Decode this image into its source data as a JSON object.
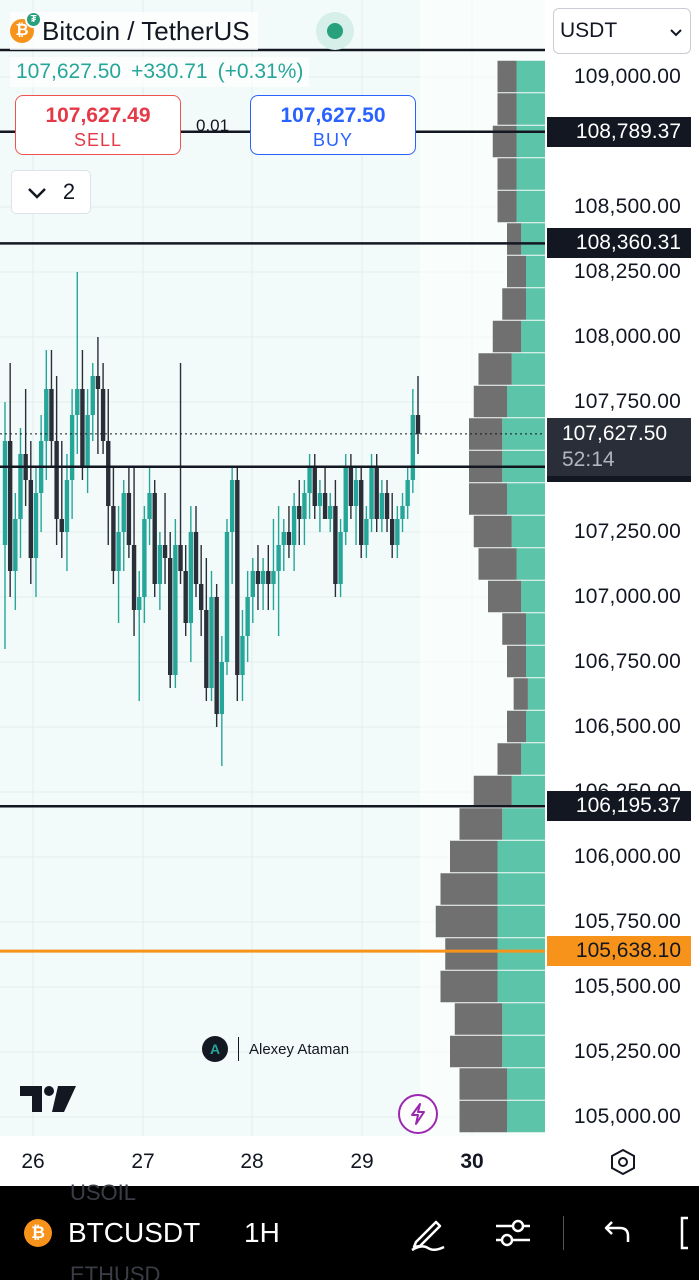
{
  "header": {
    "symbol_name": "Bitcoin / TetherUS",
    "btc_icon_glyph": "₿",
    "tether_glyph": "₮",
    "last_price": "107,627.50",
    "change": "+330.71",
    "change_pct": "(+0.31%)",
    "up_color": "#26a69a"
  },
  "trade": {
    "sell_price": "107,627.49",
    "sell_label": "SELL",
    "buy_price": "107,627.50",
    "buy_label": "BUY",
    "spread": "0.01"
  },
  "collapse": {
    "count": "2"
  },
  "currency_select": {
    "value": "USDT"
  },
  "price_axis": {
    "labels": [
      "109,000.00",
      "108,500.00",
      "108,250.00",
      "108,000.00",
      "107,750.00",
      "107,250.00",
      "107,000.00",
      "106,750.00",
      "106,500.00",
      "106,250.00",
      "106,000.00",
      "105,750.00",
      "105,500.00",
      "105,250.00",
      "105,000.00"
    ],
    "current_price": "107,627.50",
    "countdown": "52:14"
  },
  "horizontal_lines": [
    {
      "price": "108,789.37",
      "color": "#131722"
    },
    {
      "price": "108,360.31",
      "color": "#131722"
    },
    {
      "price": "107,501.20",
      "color": "#131722"
    },
    {
      "price": "106,195.37",
      "color": "#131722"
    },
    {
      "price": "105,638.10",
      "color": "#f7931a"
    }
  ],
  "time_axis": {
    "labels": [
      "26",
      "27",
      "28",
      "29",
      "30"
    ]
  },
  "watermark": {
    "author": "Alexey Ataman",
    "logo_glyph": "A"
  },
  "toolbar": {
    "symbol": "BTCUSDT",
    "interval": "1H",
    "ghost_above": "USOIL",
    "ghost_below": "ETHUSD",
    "btc_glyph": "₿"
  },
  "icons": {
    "bolt": "⚡",
    "chevron": "⌄",
    "collapse_chevron": "∨"
  },
  "colors": {
    "bull": "#26a69a",
    "bear": "#2a2e39",
    "chart_bg": "#f2fbf9",
    "vp_up": "#5cc4a8",
    "vp_down": "#707070"
  },
  "chart_data": {
    "type": "candlestick",
    "interval": "1H",
    "x_ticks": [
      "26",
      "27",
      "28",
      "29",
      "30"
    ],
    "y_range": [
      104900,
      109200
    ],
    "y_ticks": [
      105000,
      105250,
      105500,
      105750,
      106000,
      106250,
      106500,
      106750,
      107000,
      107250,
      107500,
      107750,
      108000,
      108250,
      108500,
      109000
    ],
    "last": 107627.5,
    "volume_profile": [
      {
        "price": 109000,
        "up": 3,
        "down": 2
      },
      {
        "price": 108875,
        "up": 3,
        "down": 2
      },
      {
        "price": 108750,
        "up": 3,
        "down": 2.5
      },
      {
        "price": 108625,
        "up": 3,
        "down": 2
      },
      {
        "price": 108500,
        "up": 3,
        "down": 2
      },
      {
        "price": 108375,
        "up": 2.5,
        "down": 1.5
      },
      {
        "price": 108250,
        "up": 2,
        "down": 2
      },
      {
        "price": 108125,
        "up": 2,
        "down": 2.5
      },
      {
        "price": 108000,
        "up": 2.5,
        "down": 3
      },
      {
        "price": 107875,
        "up": 3.5,
        "down": 3.5
      },
      {
        "price": 107750,
        "up": 4,
        "down": 3.5
      },
      {
        "price": 107625,
        "up": 4.5,
        "down": 3.5
      },
      {
        "price": 107500,
        "up": 4.5,
        "down": 3.5
      },
      {
        "price": 107375,
        "up": 4,
        "down": 4
      },
      {
        "price": 107250,
        "up": 3.5,
        "down": 4
      },
      {
        "price": 107125,
        "up": 3,
        "down": 4
      },
      {
        "price": 107000,
        "up": 2.5,
        "down": 3.5
      },
      {
        "price": 106875,
        "up": 2,
        "down": 2.5
      },
      {
        "price": 106750,
        "up": 2,
        "down": 2
      },
      {
        "price": 106625,
        "up": 1.8,
        "down": 1.5
      },
      {
        "price": 106500,
        "up": 2,
        "down": 2
      },
      {
        "price": 106375,
        "up": 2.5,
        "down": 2.5
      },
      {
        "price": 106250,
        "up": 3.5,
        "down": 4
      },
      {
        "price": 106125,
        "up": 4.5,
        "down": 4.5
      },
      {
        "price": 106000,
        "up": 5,
        "down": 5
      },
      {
        "price": 105875,
        "up": 5,
        "down": 6
      },
      {
        "price": 105750,
        "up": 5,
        "down": 6.5
      },
      {
        "price": 105625,
        "up": 5,
        "down": 5.5
      },
      {
        "price": 105500,
        "up": 5,
        "down": 6
      },
      {
        "price": 105375,
        "up": 4.5,
        "down": 5
      },
      {
        "price": 105250,
        "up": 4.5,
        "down": 5.5
      },
      {
        "price": 105125,
        "up": 4,
        "down": 5
      },
      {
        "price": 105000,
        "up": 4,
        "down": 5
      }
    ],
    "candles": [
      {
        "o": 107200,
        "h": 107750,
        "l": 106800,
        "c": 107600
      },
      {
        "o": 107600,
        "h": 107900,
        "l": 107000,
        "c": 107100
      },
      {
        "o": 107100,
        "h": 107400,
        "l": 106950,
        "c": 107300
      },
      {
        "o": 107300,
        "h": 107650,
        "l": 107150,
        "c": 107550
      },
      {
        "o": 107550,
        "h": 107800,
        "l": 107350,
        "c": 107450
      },
      {
        "o": 107450,
        "h": 107600,
        "l": 107050,
        "c": 107150
      },
      {
        "o": 107150,
        "h": 107500,
        "l": 107000,
        "c": 107400
      },
      {
        "o": 107400,
        "h": 107700,
        "l": 107250,
        "c": 107600
      },
      {
        "o": 107600,
        "h": 107950,
        "l": 107450,
        "c": 107800
      },
      {
        "o": 107800,
        "h": 107950,
        "l": 107500,
        "c": 107600
      },
      {
        "o": 107600,
        "h": 107850,
        "l": 107200,
        "c": 107300
      },
      {
        "o": 107300,
        "h": 107600,
        "l": 107150,
        "c": 107250
      },
      {
        "o": 107250,
        "h": 107550,
        "l": 107100,
        "c": 107450
      },
      {
        "o": 107450,
        "h": 107800,
        "l": 107300,
        "c": 107700
      },
      {
        "o": 107700,
        "h": 108250,
        "l": 107550,
        "c": 107800
      },
      {
        "o": 107800,
        "h": 107950,
        "l": 107450,
        "c": 107500
      },
      {
        "o": 107500,
        "h": 107800,
        "l": 107400,
        "c": 107700
      },
      {
        "o": 107700,
        "h": 107900,
        "l": 107600,
        "c": 107850
      },
      {
        "o": 107850,
        "h": 108000,
        "l": 107550,
        "c": 107800
      },
      {
        "o": 107800,
        "h": 107900,
        "l": 107550,
        "c": 107600
      },
      {
        "o": 107600,
        "h": 107800,
        "l": 107200,
        "c": 107350
      },
      {
        "o": 107350,
        "h": 107500,
        "l": 107050,
        "c": 107100
      },
      {
        "o": 107100,
        "h": 107350,
        "l": 106900,
        "c": 107250
      },
      {
        "o": 107250,
        "h": 107450,
        "l": 107100,
        "c": 107400
      },
      {
        "o": 107400,
        "h": 107500,
        "l": 107150,
        "c": 107200
      },
      {
        "o": 107200,
        "h": 107500,
        "l": 106850,
        "c": 106950
      },
      {
        "o": 106950,
        "h": 107100,
        "l": 106600,
        "c": 107000
      },
      {
        "o": 107000,
        "h": 107350,
        "l": 106900,
        "c": 107300
      },
      {
        "o": 107300,
        "h": 107500,
        "l": 107200,
        "c": 107400
      },
      {
        "o": 107400,
        "h": 107450,
        "l": 107000,
        "c": 107050
      },
      {
        "o": 107050,
        "h": 107250,
        "l": 106950,
        "c": 107200
      },
      {
        "o": 107200,
        "h": 107400,
        "l": 107050,
        "c": 107150
      },
      {
        "o": 107150,
        "h": 107250,
        "l": 106650,
        "c": 106700
      },
      {
        "o": 106700,
        "h": 107300,
        "l": 106650,
        "c": 107200
      },
      {
        "o": 107200,
        "h": 107900,
        "l": 107050,
        "c": 107100
      },
      {
        "o": 107100,
        "h": 107200,
        "l": 106850,
        "c": 106900
      },
      {
        "o": 106900,
        "h": 107350,
        "l": 106750,
        "c": 107250
      },
      {
        "o": 107250,
        "h": 107350,
        "l": 107000,
        "c": 107050
      },
      {
        "o": 107050,
        "h": 107200,
        "l": 106850,
        "c": 106950
      },
      {
        "o": 106950,
        "h": 107150,
        "l": 106600,
        "c": 106650
      },
      {
        "o": 106650,
        "h": 107100,
        "l": 106600,
        "c": 107000
      },
      {
        "o": 107000,
        "h": 107050,
        "l": 106500,
        "c": 106550
      },
      {
        "o": 106550,
        "h": 106850,
        "l": 106350,
        "c": 106750
      },
      {
        "o": 106750,
        "h": 107300,
        "l": 106700,
        "c": 107250
      },
      {
        "o": 107250,
        "h": 107500,
        "l": 107050,
        "c": 107450
      },
      {
        "o": 107450,
        "h": 107500,
        "l": 106600,
        "c": 106700
      },
      {
        "o": 106700,
        "h": 106950,
        "l": 106600,
        "c": 106850
      },
      {
        "o": 106850,
        "h": 107100,
        "l": 106750,
        "c": 107000
      },
      {
        "o": 107000,
        "h": 107150,
        "l": 106900,
        "c": 107100
      },
      {
        "o": 107100,
        "h": 107200,
        "l": 106950,
        "c": 107050
      },
      {
        "o": 107050,
        "h": 107150,
        "l": 106950,
        "c": 107100
      },
      {
        "o": 107100,
        "h": 107200,
        "l": 106950,
        "c": 107050
      },
      {
        "o": 107050,
        "h": 107300,
        "l": 106950,
        "c": 107100
      },
      {
        "o": 107100,
        "h": 107350,
        "l": 106850,
        "c": 107200
      },
      {
        "o": 107200,
        "h": 107300,
        "l": 107100,
        "c": 107250
      },
      {
        "o": 107250,
        "h": 107350,
        "l": 107150,
        "c": 107200
      },
      {
        "o": 107200,
        "h": 107400,
        "l": 107100,
        "c": 107350
      },
      {
        "o": 107350,
        "h": 107450,
        "l": 107200,
        "c": 107300
      },
      {
        "o": 107300,
        "h": 107450,
        "l": 107200,
        "c": 107400
      },
      {
        "o": 107400,
        "h": 107550,
        "l": 107300,
        "c": 107500
      },
      {
        "o": 107500,
        "h": 107550,
        "l": 107300,
        "c": 107350
      },
      {
        "o": 107350,
        "h": 107450,
        "l": 107250,
        "c": 107400
      },
      {
        "o": 107400,
        "h": 107500,
        "l": 107300,
        "c": 107300
      },
      {
        "o": 107300,
        "h": 107400,
        "l": 107250,
        "c": 107350
      },
      {
        "o": 107350,
        "h": 107450,
        "l": 107000,
        "c": 107050
      },
      {
        "o": 107050,
        "h": 107300,
        "l": 107000,
        "c": 107250
      },
      {
        "o": 107250,
        "h": 107550,
        "l": 107200,
        "c": 107500
      },
      {
        "o": 107500,
        "h": 107550,
        "l": 107300,
        "c": 107350
      },
      {
        "o": 107350,
        "h": 107500,
        "l": 107200,
        "c": 107450
      },
      {
        "o": 107450,
        "h": 107500,
        "l": 107150,
        "c": 107200
      },
      {
        "o": 107200,
        "h": 107350,
        "l": 107150,
        "c": 107300
      },
      {
        "o": 107300,
        "h": 107550,
        "l": 107250,
        "c": 107500
      },
      {
        "o": 107500,
        "h": 107550,
        "l": 107250,
        "c": 107300
      },
      {
        "o": 107300,
        "h": 107450,
        "l": 107250,
        "c": 107400
      },
      {
        "o": 107400,
        "h": 107450,
        "l": 107250,
        "c": 107300
      },
      {
        "o": 107300,
        "h": 107400,
        "l": 107150,
        "c": 107200
      },
      {
        "o": 107200,
        "h": 107350,
        "l": 107150,
        "c": 107300
      },
      {
        "o": 107300,
        "h": 107400,
        "l": 107250,
        "c": 107350
      },
      {
        "o": 107350,
        "h": 107500,
        "l": 107300,
        "c": 107450
      },
      {
        "o": 107450,
        "h": 107800,
        "l": 107400,
        "c": 107700
      },
      {
        "o": 107700,
        "h": 107850,
        "l": 107550,
        "c": 107627.5
      }
    ]
  }
}
